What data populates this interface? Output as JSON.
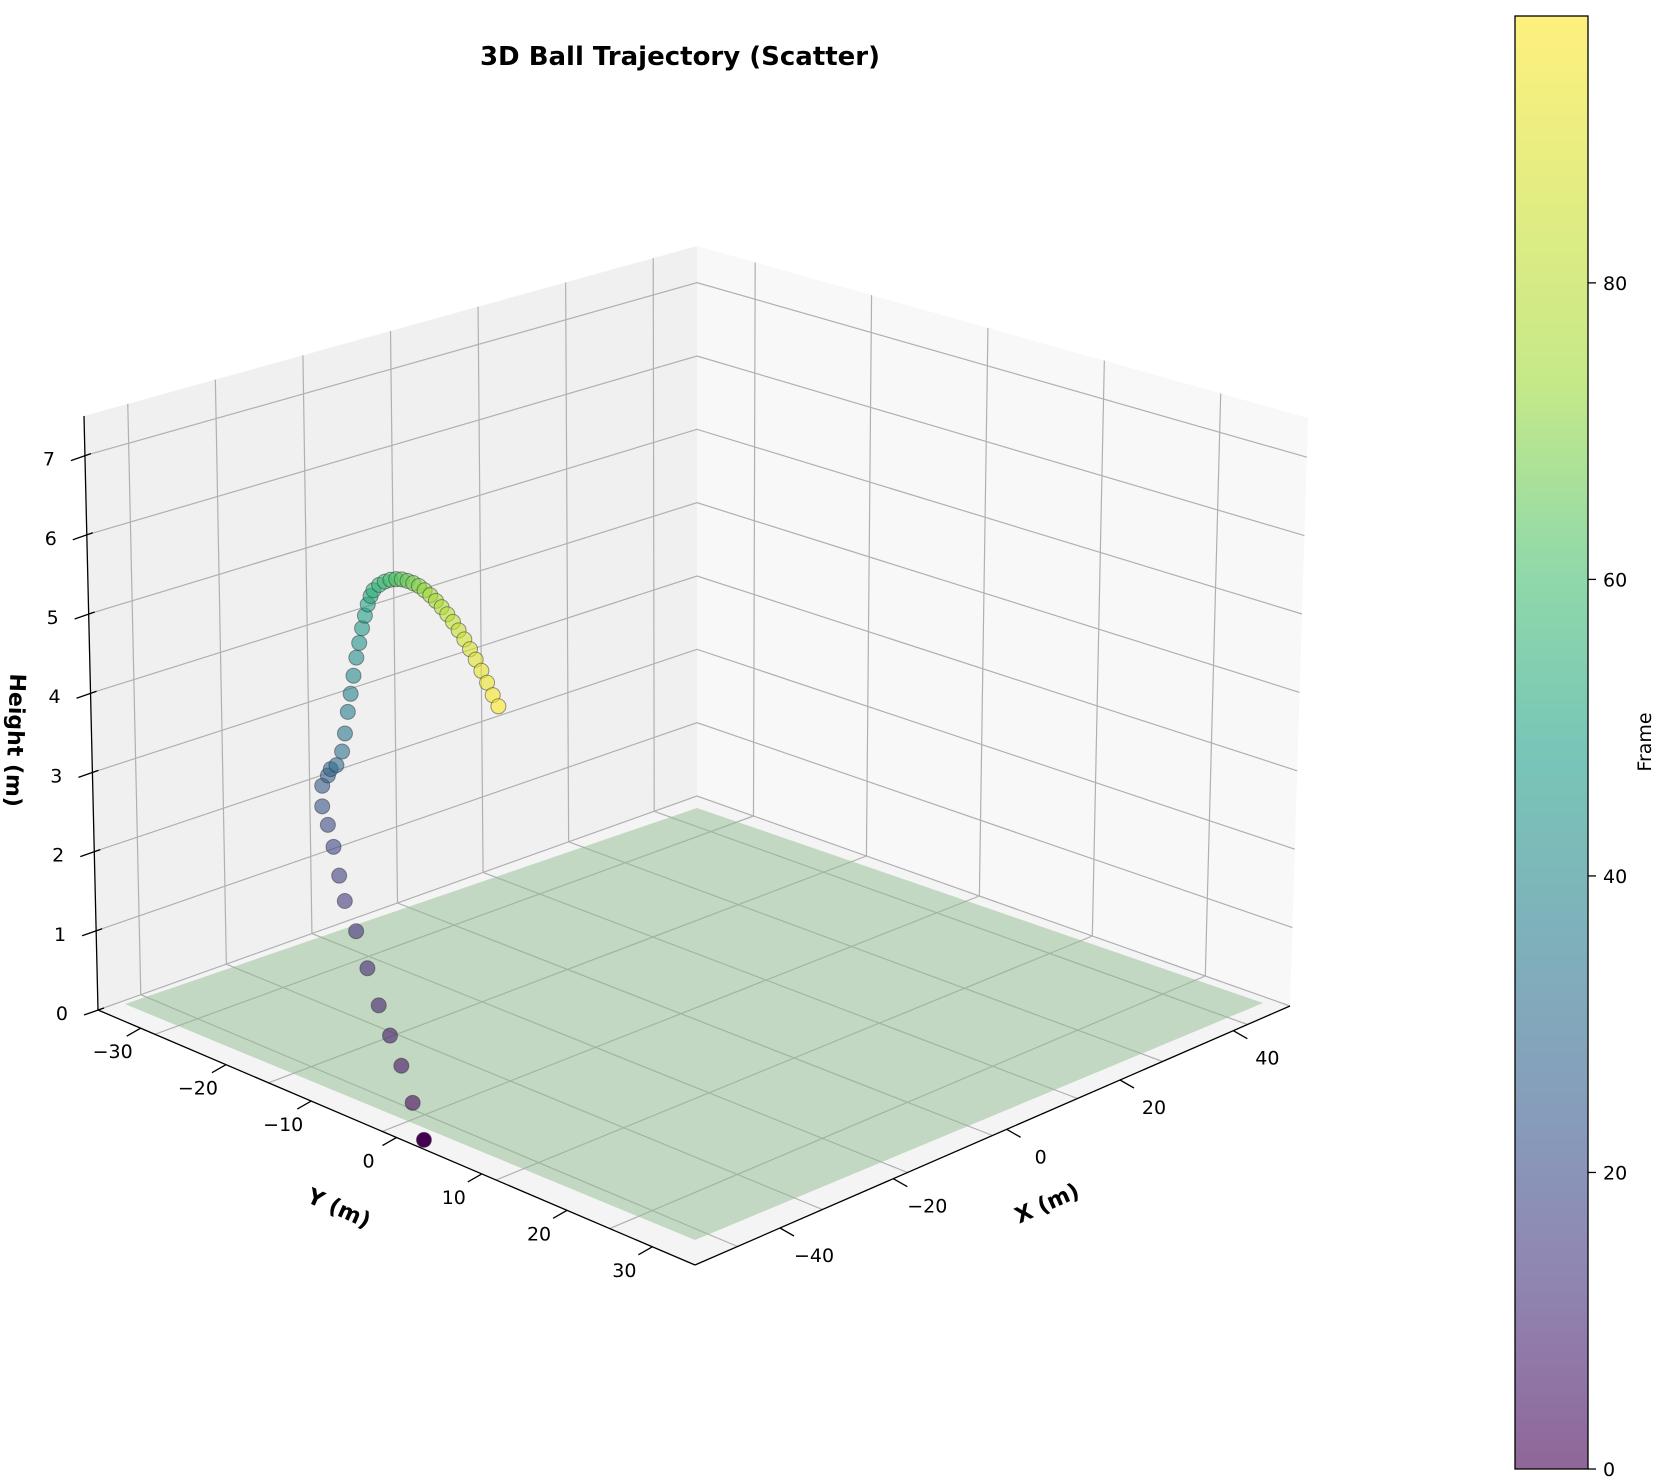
{
  "chart_data": {
    "type": "scatter",
    "projection": "3d",
    "title": "3D Ball Trajectory (Scatter)",
    "xlabel": "X (m)",
    "ylabel": "Y (m)",
    "zlabel": "Height (m)",
    "colorbar_label": "Frame",
    "colormap": "viridis",
    "xlim": [
      -55,
      50
    ],
    "ylim": [
      -35,
      35
    ],
    "zlim": [
      0,
      8
    ],
    "x_ticks": [
      "−40",
      "−20",
      "0",
      "20",
      "40"
    ],
    "y_ticks": [
      "−30",
      "−20",
      "−10",
      "0",
      "10",
      "20",
      "30"
    ],
    "z_ticks": [
      "0",
      "1",
      "2",
      "3",
      "4",
      "5",
      "6",
      "7"
    ],
    "colorbar_ticks": [
      "0",
      "20",
      "40",
      "60",
      "80"
    ],
    "colorbar_range": [
      0,
      98
    ],
    "ground_plane_color": "#8fbc8f",
    "grid": true,
    "points": [
      {
        "frame": 0,
        "x": 2,
        "y": 2,
        "z": 0
      },
      {
        "frame": 2,
        "x": 0,
        "y": 1,
        "z": 0.5
      },
      {
        "frame": 4,
        "x": -2,
        "y": 0,
        "z": 1.0
      },
      {
        "frame": 6,
        "x": -4,
        "y": -1,
        "z": 1.4
      },
      {
        "frame": 8,
        "x": -6,
        "y": -2,
        "z": 1.8
      },
      {
        "frame": 10,
        "x": -8,
        "y": -3,
        "z": 2.3
      },
      {
        "frame": 12,
        "x": -10,
        "y": -4,
        "z": 2.8
      },
      {
        "frame": 14,
        "x": -12,
        "y": -5,
        "z": 3.2
      },
      {
        "frame": 16,
        "x": -13,
        "y": -6,
        "z": 3.5
      },
      {
        "frame": 18,
        "x": -14,
        "y": -6.5,
        "z": 3.9
      },
      {
        "frame": 20,
        "x": -15,
        "y": -7,
        "z": 4.2
      },
      {
        "frame": 22,
        "x": -16,
        "y": -7.5,
        "z": 4.45
      },
      {
        "frame": 24,
        "x": -16,
        "y": -7.5,
        "z": 4.75
      },
      {
        "frame": 26,
        "x": -15,
        "y": -8,
        "z": 4.82
      },
      {
        "frame": 28,
        "x": -14.5,
        "y": -8.5,
        "z": 4.85
      },
      {
        "frame": 30,
        "x": -13.5,
        "y": -9,
        "z": 4.83
      },
      {
        "frame": 32,
        "x": -12.5,
        "y": -9.5,
        "z": 4.95
      },
      {
        "frame": 34,
        "x": -12,
        "y": -10,
        "z": 5.15
      },
      {
        "frame": 36,
        "x": -11.5,
        "y": -10.5,
        "z": 5.4
      },
      {
        "frame": 38,
        "x": -11,
        "y": -11,
        "z": 5.6
      },
      {
        "frame": 40,
        "x": -10.5,
        "y": -11.5,
        "z": 5.8
      },
      {
        "frame": 42,
        "x": -10,
        "y": -12,
        "z": 6.0
      },
      {
        "frame": 44,
        "x": -9.5,
        "y": -12.5,
        "z": 6.15
      },
      {
        "frame": 46,
        "x": -9,
        "y": -13,
        "z": 6.3
      },
      {
        "frame": 48,
        "x": -8.5,
        "y": -13.5,
        "z": 6.42
      },
      {
        "frame": 50,
        "x": -8,
        "y": -14,
        "z": 6.52
      },
      {
        "frame": 52,
        "x": -7.5,
        "y": -14.5,
        "z": 6.58
      },
      {
        "frame": 54,
        "x": -7,
        "y": -15,
        "z": 6.6
      },
      {
        "frame": 56,
        "x": -6,
        "y": -15.5,
        "z": 6.6
      },
      {
        "frame": 58,
        "x": -5,
        "y": -16,
        "z": 6.57
      },
      {
        "frame": 60,
        "x": -4,
        "y": -16.5,
        "z": 6.52
      },
      {
        "frame": 62,
        "x": -3,
        "y": -17,
        "z": 6.45
      },
      {
        "frame": 64,
        "x": -2,
        "y": -17.5,
        "z": 6.37
      },
      {
        "frame": 66,
        "x": -1,
        "y": -18,
        "z": 6.27
      },
      {
        "frame": 68,
        "x": 0,
        "y": -18.5,
        "z": 6.16
      },
      {
        "frame": 70,
        "x": 1,
        "y": -19,
        "z": 6.04
      },
      {
        "frame": 72,
        "x": 2,
        "y": -19.5,
        "z": 5.9
      },
      {
        "frame": 74,
        "x": 3,
        "y": -20,
        "z": 5.75
      },
      {
        "frame": 76,
        "x": 4,
        "y": -20.5,
        "z": 5.59
      },
      {
        "frame": 78,
        "x": 5,
        "y": -21,
        "z": 5.42
      },
      {
        "frame": 80,
        "x": 6,
        "y": -21.5,
        "z": 5.24
      },
      {
        "frame": 82,
        "x": 7,
        "y": -22,
        "z": 5.05
      },
      {
        "frame": 84,
        "x": 8,
        "y": -22.5,
        "z": 4.85
      },
      {
        "frame": 86,
        "x": 9,
        "y": -23,
        "z": 4.64
      },
      {
        "frame": 88,
        "x": 10,
        "y": -23.5,
        "z": 4.42
      },
      {
        "frame": 90,
        "x": 11,
        "y": -24,
        "z": 4.19
      },
      {
        "frame": 92,
        "x": 12,
        "y": -24.5,
        "z": 3.95
      },
      {
        "frame": 94,
        "x": 13,
        "y": -25,
        "z": 3.7
      },
      {
        "frame": 96,
        "x": 14,
        "y": -25.5,
        "z": 3.44
      },
      {
        "frame": 98,
        "x": 15,
        "y": -26,
        "z": 3.2
      }
    ]
  }
}
